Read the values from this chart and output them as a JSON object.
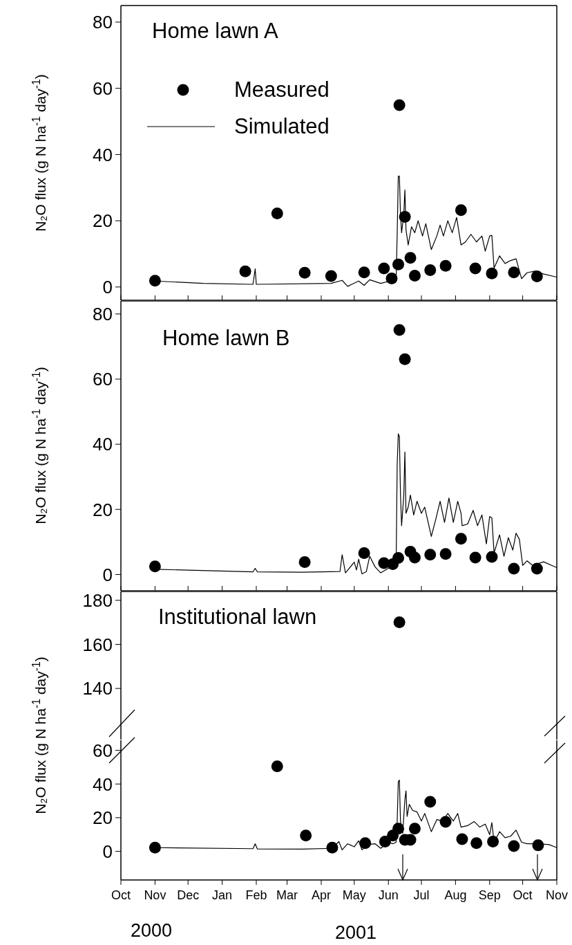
{
  "chart_data": [
    {
      "type": "line",
      "title": "Home lawn A",
      "ylabel": "N₂O flux (g N ha$^{-1}$ day$^{-1}$)",
      "xlim": [
        "2000-10-01",
        "2001-11-01"
      ],
      "xticks": [
        {
          "value": "2000-10-01",
          "label": null
        },
        {
          "value": "2000-11-01",
          "label": null
        },
        {
          "value": "2000-12-01",
          "label": null
        },
        {
          "value": "2001-01-01",
          "label": null
        },
        {
          "value": "2001-02-01",
          "label": null
        },
        {
          "value": "2001-03-01",
          "label": null
        },
        {
          "value": "2001-04-01",
          "label": null
        },
        {
          "value": "2001-05-01",
          "label": null
        },
        {
          "value": "2001-06-01",
          "label": null
        },
        {
          "value": "2001-07-01",
          "label": null
        },
        {
          "value": "2001-08-01",
          "label": null
        },
        {
          "value": "2001-09-01",
          "label": null
        },
        {
          "value": "2001-10-01",
          "label": null
        },
        {
          "value": "2001-11-01",
          "label": null
        }
      ],
      "ylim": [
        -4,
        85
      ],
      "yticks": [
        0,
        20,
        40,
        60,
        80
      ],
      "tick_labels": "y",
      "legend": "top left",
      "series": [
        {
          "name": "Measured",
          "type": "scatter",
          "marker": "circle",
          "color": "#000000",
          "x": [
            "2000-11-01",
            "2001-01-22",
            "2001-02-20",
            "2001-03-17",
            "2001-04-10",
            "2001-05-10",
            "2001-05-28",
            "2001-06-04",
            "2001-06-10",
            "2001-06-11",
            "2001-06-16",
            "2001-06-21",
            "2001-06-25",
            "2001-07-09",
            "2001-07-23",
            "2001-08-06",
            "2001-08-19",
            "2001-09-03",
            "2001-09-23",
            "2001-10-14"
          ],
          "values": [
            1.9,
            4.7,
            22.2,
            4.3,
            3.3,
            4.4,
            5.6,
            2.6,
            6.8,
            54.9,
            21.2,
            8.8,
            3.4,
            5.1,
            6.4,
            23.2,
            5.6,
            4.1,
            4.4,
            3.2
          ]
        },
        {
          "name": "Simulated",
          "color": "#000000",
          "x": [
            "2000-11-01",
            "2000-12-15",
            "2001-01-29",
            "2001-01-31",
            "2001-02-01",
            "2001-04-10",
            "2001-04-20",
            "2001-04-25",
            "2001-05-05",
            "2001-05-10",
            "2001-05-15",
            "2001-05-25",
            "2001-06-05",
            "2001-06-08",
            "2001-06-09",
            "2001-06-10",
            "2001-06-11",
            "2001-06-12",
            "2001-06-13",
            "2001-06-15",
            "2001-06-16",
            "2001-06-17",
            "2001-06-19",
            "2001-06-22",
            "2001-06-25",
            "2001-06-28",
            "2001-07-02",
            "2001-07-05",
            "2001-07-10",
            "2001-07-15",
            "2001-07-18",
            "2001-07-21",
            "2001-07-25",
            "2001-07-29",
            "2001-08-02",
            "2001-08-06",
            "2001-08-10",
            "2001-08-15",
            "2001-08-20",
            "2001-08-25",
            "2001-08-28",
            "2001-09-01",
            "2001-09-03",
            "2001-09-05",
            "2001-09-10",
            "2001-09-15",
            "2001-09-20",
            "2001-09-25",
            "2001-09-30",
            "2001-10-05",
            "2001-10-12",
            "2001-10-20",
            "2001-11-01"
          ],
          "values": [
            1.8,
            1.1,
            0.8,
            5.5,
            0.8,
            1.1,
            2,
            0.2,
            1.8,
            0.5,
            2.2,
            1.1,
            2,
            2,
            16,
            33.5,
            33.5,
            22,
            16.4,
            22,
            29.3,
            17.3,
            12.7,
            18.2,
            16.4,
            20,
            15.4,
            19.1,
            11.3,
            15.4,
            18.7,
            15.4,
            20,
            16.4,
            21,
            12.7,
            13.6,
            15.9,
            13.6,
            15.4,
            10.8,
            15.4,
            15.6,
            5.7,
            9.4,
            7.1,
            8,
            8.5,
            2.5,
            4.3,
            4.8,
            3.9,
            3
          ]
        }
      ]
    },
    {
      "type": "line",
      "title": "Home lawn B",
      "ylabel": "N₂O flux (g N ha$^{-1}$ day$^{-1}$)",
      "xlim": [
        "2000-10-01",
        "2001-11-01"
      ],
      "xticks": [
        {
          "value": "2000-10-01",
          "label": null
        },
        {
          "value": "2000-11-01",
          "label": null
        },
        {
          "value": "2000-12-01",
          "label": null
        },
        {
          "value": "2001-01-01",
          "label": null
        },
        {
          "value": "2001-02-01",
          "label": null
        },
        {
          "value": "2001-03-01",
          "label": null
        },
        {
          "value": "2001-04-01",
          "label": null
        },
        {
          "value": "2001-05-01",
          "label": null
        },
        {
          "value": "2001-06-01",
          "label": null
        },
        {
          "value": "2001-07-01",
          "label": null
        },
        {
          "value": "2001-08-01",
          "label": null
        },
        {
          "value": "2001-09-01",
          "label": null
        },
        {
          "value": "2001-10-01",
          "label": null
        },
        {
          "value": "2001-11-01",
          "label": null
        }
      ],
      "ylim": [
        -5,
        84
      ],
      "yticks": [
        0,
        20,
        40,
        60,
        80
      ],
      "tick_labels": "y",
      "series": [
        {
          "type": "scatter",
          "marker": "circle",
          "color": "#000000",
          "x": [
            "2000-11-01",
            "2001-03-17",
            "2001-05-10",
            "2001-05-28",
            "2001-06-05",
            "2001-06-10",
            "2001-06-11",
            "2001-06-16",
            "2001-06-21",
            "2001-06-25",
            "2001-07-09",
            "2001-07-23",
            "2001-08-06",
            "2001-08-19",
            "2001-09-03",
            "2001-09-23",
            "2001-10-14"
          ],
          "values": [
            2.5,
            3.8,
            6.6,
            3.5,
            3.2,
            5.1,
            75.1,
            66.1,
            7,
            5.2,
            6.1,
            6.3,
            11,
            5.2,
            5.4,
            1.8,
            1.8
          ]
        },
        {
          "color": "#000000",
          "x": [
            "2000-11-01",
            "2001-01-29",
            "2001-01-31",
            "2001-02-02",
            "2001-03-15",
            "2001-04-18",
            "2001-04-20",
            "2001-04-23",
            "2001-05-01",
            "2001-05-03",
            "2001-05-05",
            "2001-05-08",
            "2001-05-12",
            "2001-05-15",
            "2001-05-20",
            "2001-05-25",
            "2001-06-01",
            "2001-06-08",
            "2001-06-09",
            "2001-06-10",
            "2001-06-11",
            "2001-06-12",
            "2001-06-13",
            "2001-06-15",
            "2001-06-16",
            "2001-06-17",
            "2001-06-19",
            "2001-06-21",
            "2001-06-24",
            "2001-06-27",
            "2001-07-01",
            "2001-07-04",
            "2001-07-10",
            "2001-07-14",
            "2001-07-18",
            "2001-07-22",
            "2001-07-26",
            "2001-07-30",
            "2001-08-03",
            "2001-08-06",
            "2001-08-07",
            "2001-08-12",
            "2001-08-17",
            "2001-08-21",
            "2001-08-25",
            "2001-08-29",
            "2001-09-01",
            "2001-09-03",
            "2001-09-05",
            "2001-09-10",
            "2001-09-14",
            "2001-09-18",
            "2001-09-22",
            "2001-09-25",
            "2001-09-28",
            "2001-10-01",
            "2001-10-05",
            "2001-10-10",
            "2001-10-20",
            "2001-11-01"
          ],
          "values": [
            1.6,
            0.8,
            1.9,
            0.8,
            0.7,
            0.9,
            6.1,
            0.5,
            3.8,
            1.4,
            4.7,
            0.2,
            0.9,
            5.6,
            2.3,
            0.5,
            1.9,
            1.9,
            33.8,
            43.2,
            42.3,
            24.4,
            15,
            24.4,
            37.6,
            18.8,
            20.7,
            24.4,
            18.3,
            22.5,
            18.8,
            20.7,
            11.7,
            16.9,
            22.5,
            16,
            23.5,
            16,
            22.5,
            18.8,
            15,
            15.5,
            19.7,
            15,
            18.3,
            9.4,
            17.8,
            17.4,
            6.6,
            12.2,
            5.6,
            11.3,
            7.5,
            12.7,
            10.8,
            2.8,
            4.2,
            2.8,
            3.9,
            2.1
          ]
        }
      ]
    },
    {
      "type": "scatter",
      "title": "Institutional lawn",
      "xlim": [
        "2000-10-01",
        "2001-11-01"
      ],
      "ylim": [
        130,
        184
      ],
      "yticks": [
        140,
        160,
        180
      ],
      "tick_labels": "y",
      "marker": "circle",
      "series": [
        {
          "color": "#000000",
          "x": [
            "2001-06-11"
          ],
          "values": [
            170
          ]
        }
      ]
    },
    {
      "type": "line",
      "ylabel": "N₂O flux (g N ha$^{-1}$ day$^{-1}$)",
      "xlim": [
        "2000-10-01",
        "2001-11-01"
      ],
      "xticks": [
        {
          "value": "2000-10-01",
          "label": "Oct"
        },
        {
          "value": "2000-11-01",
          "label": "Nov"
        },
        {
          "value": "2000-12-01",
          "label": "Dec"
        },
        {
          "value": "2001-01-01",
          "label": "Jan"
        },
        {
          "value": "2001-02-01",
          "label": "Feb"
        },
        {
          "value": "2001-03-01",
          "label": "Mar"
        },
        {
          "value": "2001-04-01",
          "label": "Apr"
        },
        {
          "value": "2001-05-01",
          "label": "May"
        },
        {
          "value": "2001-06-01",
          "label": "Jun"
        },
        {
          "value": "2001-07-01",
          "label": "Jul"
        },
        {
          "value": "2001-08-01",
          "label": "Aug"
        },
        {
          "value": "2001-09-01",
          "label": "Sep"
        },
        {
          "value": "2001-10-01",
          "label": "Oct"
        },
        {
          "value": "2001-11-01",
          "label": "Nov"
        }
      ],
      "ylim": [
        -17,
        66
      ],
      "yticks": [
        0,
        20,
        40,
        60
      ],
      "annotations": [
        "2000",
        "2001"
      ],
      "series": [
        {
          "type": "scatter",
          "marker": "circle",
          "color": "#000000",
          "x": [
            "2000-11-01",
            "2001-02-20",
            "2001-03-18",
            "2001-04-11",
            "2001-05-11",
            "2001-05-29",
            "2001-06-05",
            "2001-06-10",
            "2001-06-16",
            "2001-06-21",
            "2001-06-25",
            "2001-07-09",
            "2001-07-23",
            "2001-08-07",
            "2001-08-20",
            "2001-09-04",
            "2001-09-23",
            "2001-10-15"
          ],
          "values": [
            2.2,
            50.5,
            9.4,
            2.2,
            4.9,
            5.8,
            9.4,
            13.5,
            6.8,
            6.8,
            13.5,
            29.4,
            17.5,
            7.2,
            4.9,
            5.8,
            3.1,
            3.6
          ]
        },
        {
          "color": "#000000",
          "x": [
            "2000-11-01",
            "2001-01-29",
            "2001-01-31",
            "2001-02-02",
            "2001-03-15",
            "2001-04-11",
            "2001-04-17",
            "2001-04-20",
            "2001-04-25",
            "2001-05-01",
            "2001-05-05",
            "2001-05-08",
            "2001-05-13",
            "2001-05-20",
            "2001-05-25",
            "2001-06-01",
            "2001-06-05",
            "2001-06-08",
            "2001-06-09",
            "2001-06-10",
            "2001-06-11",
            "2001-06-12",
            "2001-06-14",
            "2001-06-16",
            "2001-06-17",
            "2001-06-18",
            "2001-06-20",
            "2001-06-23",
            "2001-06-27",
            "2001-07-01",
            "2001-07-04",
            "2001-07-10",
            "2001-07-15",
            "2001-07-20",
            "2001-07-25",
            "2001-07-30",
            "2001-08-03",
            "2001-08-06",
            "2001-08-12",
            "2001-08-18",
            "2001-08-23",
            "2001-08-28",
            "2001-09-01",
            "2001-09-03",
            "2001-09-05",
            "2001-09-10",
            "2001-09-15",
            "2001-09-20",
            "2001-09-25",
            "2001-09-30",
            "2001-10-05",
            "2001-10-15",
            "2001-10-25",
            "2001-11-01"
          ],
          "values": [
            2.2,
            1.6,
            4.5,
            1.4,
            1.3,
            1.8,
            5.8,
            0.9,
            4.5,
            2.7,
            6.3,
            0.9,
            4,
            4.5,
            1.8,
            5.4,
            4.5,
            5.4,
            18,
            41.4,
            42.3,
            18,
            10.8,
            30.6,
            36,
            20.7,
            27.9,
            24.3,
            23.4,
            18,
            22.5,
            11.7,
            18.9,
            18,
            22.5,
            18,
            22.5,
            14.4,
            15.3,
            17.7,
            14.4,
            16.2,
            9.9,
            17.1,
            5.4,
            11.7,
            8.1,
            9,
            12.6,
            5.4,
            4.5,
            4.5,
            4,
            2.2
          ]
        }
      ]
    }
  ]
}
